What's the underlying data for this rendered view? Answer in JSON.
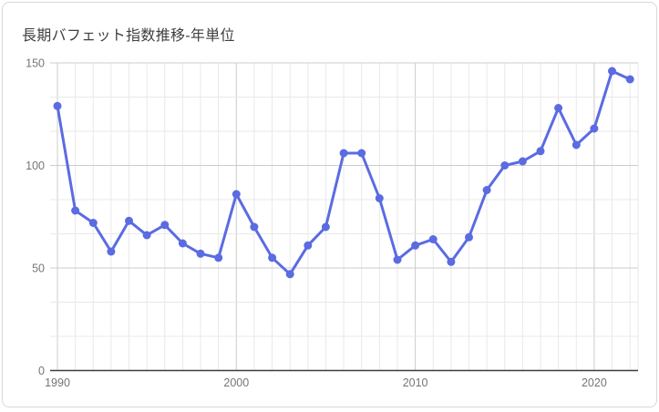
{
  "title": "長期バフェット指数推移-年単位",
  "chart_data": {
    "type": "line",
    "title": "長期バフェット指数推移-年単位",
    "x": [
      1990,
      1991,
      1992,
      1993,
      1994,
      1995,
      1996,
      1997,
      1998,
      1999,
      2000,
      2001,
      2002,
      2003,
      2004,
      2005,
      2006,
      2007,
      2008,
      2009,
      2010,
      2011,
      2012,
      2013,
      2014,
      2015,
      2016,
      2017,
      2018,
      2019,
      2020,
      2021,
      2022
    ],
    "values": [
      129,
      78,
      72,
      58,
      73,
      66,
      71,
      62,
      57,
      55,
      86,
      70,
      55,
      47,
      61,
      70,
      106,
      106,
      84,
      54,
      61,
      64,
      53,
      65,
      88,
      100,
      102,
      107,
      128,
      110,
      118,
      146,
      142
    ],
    "xlabel": "",
    "ylabel": "",
    "ylim": [
      0,
      150
    ],
    "yticks": [
      {
        "value": 0,
        "label": "0"
      },
      {
        "value": 50,
        "label": "50"
      },
      {
        "value": 100,
        "label": "100"
      },
      {
        "value": 150,
        "label": "150"
      }
    ],
    "xticks": [
      {
        "value": 1990,
        "label": "1990"
      },
      {
        "value": 2000,
        "label": "2000"
      },
      {
        "value": 2010,
        "label": "2010"
      },
      {
        "value": 2020,
        "label": "2020"
      }
    ],
    "grid": {
      "y_intervals": 9,
      "y_major_values": [
        50,
        100,
        150
      ],
      "x_minor_every_year": true,
      "x_major_every_years": 10
    },
    "legend": "none",
    "colors": {
      "line": "#5b6be2",
      "point": "#5b6be2",
      "grid_major": "#cccccc",
      "grid_minor": "#e9e9e9",
      "axis": "#3f3f3f",
      "tick_label": "#757575",
      "title": "#404040",
      "card_border": "#d8d8d8",
      "background": "#ffffff"
    }
  }
}
